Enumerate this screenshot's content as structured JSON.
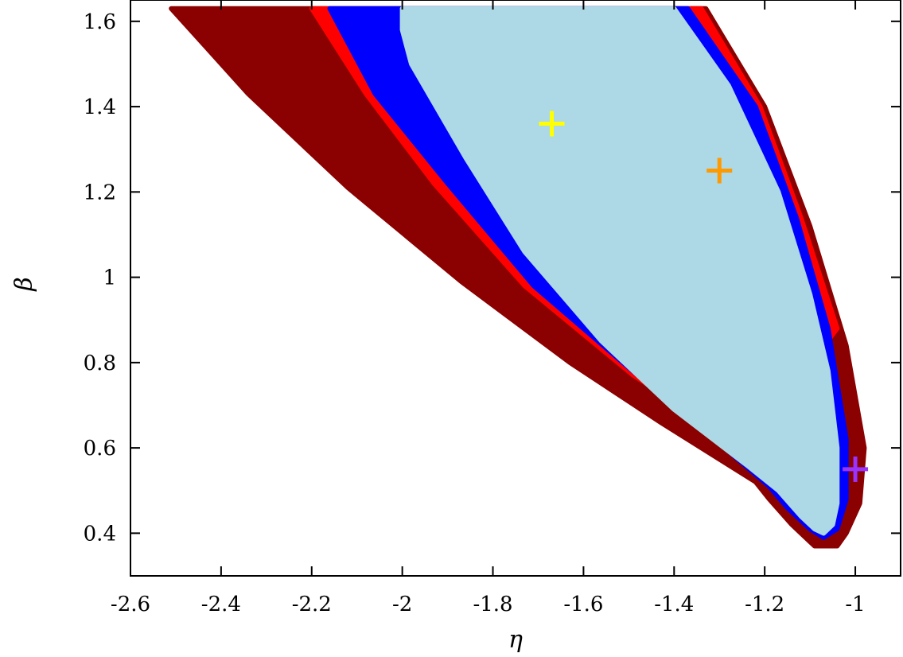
{
  "chart_data": {
    "type": "area",
    "title": "",
    "xlabel": "η",
    "ylabel": "β",
    "xlim": [
      -2.6,
      -0.9
    ],
    "ylim": [
      0.3,
      1.65
    ],
    "xticks": [
      -2.6,
      -2.4,
      -2.2,
      -2.0,
      -1.8,
      -1.6,
      -1.4,
      -1.2,
      -1.0
    ],
    "xtick_labels": [
      "-2.6",
      "-2.4",
      "-2.2",
      "-2",
      "-1.8",
      "-1.6",
      "-1.4",
      "-1.2",
      "-1"
    ],
    "yticks": [
      0.4,
      0.6,
      0.8,
      1.0,
      1.2,
      1.4,
      1.6
    ],
    "ytick_labels": [
      "0.4",
      "0.6",
      "0.8",
      "1",
      "1.2",
      "1.4",
      "1.6"
    ],
    "grid": false,
    "legend": "none",
    "regions": [
      {
        "color": "#8b0000",
        "points": [
          [
            -2.51,
            1.63
          ],
          [
            -1.33,
            1.63
          ],
          [
            -1.2,
            1.4
          ],
          [
            -1.1,
            1.12
          ],
          [
            -1.02,
            0.84
          ],
          [
            -0.98,
            0.6
          ],
          [
            -0.99,
            0.47
          ],
          [
            -1.02,
            0.4
          ],
          [
            -1.04,
            0.37
          ],
          [
            -1.09,
            0.37
          ],
          [
            -1.14,
            0.42
          ],
          [
            -1.19,
            0.48
          ],
          [
            -1.22,
            0.52
          ],
          [
            -1.43,
            0.66
          ],
          [
            -1.63,
            0.8
          ],
          [
            -1.87,
            0.99
          ],
          [
            -2.12,
            1.21
          ],
          [
            -2.34,
            1.43
          ]
        ]
      },
      {
        "color": "#ff0000",
        "points": [
          [
            -2.2,
            1.63
          ],
          [
            -1.34,
            1.63
          ],
          [
            -1.21,
            1.4
          ],
          [
            -1.12,
            1.14
          ],
          [
            -1.04,
            0.88
          ],
          [
            -1.24,
            0.6
          ],
          [
            -1.49,
            0.77
          ],
          [
            -1.73,
            0.98
          ],
          [
            -1.93,
            1.22
          ],
          [
            -2.08,
            1.43
          ]
        ]
      },
      {
        "color": "#0000ff",
        "points": [
          [
            -2.16,
            1.63
          ],
          [
            -1.37,
            1.63
          ],
          [
            -1.22,
            1.4
          ],
          [
            -1.13,
            1.14
          ],
          [
            -1.06,
            0.88
          ],
          [
            -1.02,
            0.62
          ],
          [
            -1.02,
            0.48
          ],
          [
            -1.04,
            0.41
          ],
          [
            -1.07,
            0.39
          ],
          [
            -1.1,
            0.41
          ],
          [
            -1.15,
            0.46
          ],
          [
            -1.19,
            0.51
          ],
          [
            -1.31,
            0.62
          ],
          [
            -1.48,
            0.77
          ],
          [
            -1.71,
            0.98
          ],
          [
            -1.9,
            1.22
          ],
          [
            -2.06,
            1.43
          ]
        ]
      },
      {
        "color": "#add8e6",
        "points": [
          [
            -2.0,
            1.63
          ],
          [
            -1.4,
            1.63
          ],
          [
            -1.28,
            1.45
          ],
          [
            -1.17,
            1.2
          ],
          [
            -1.1,
            0.96
          ],
          [
            -1.06,
            0.78
          ],
          [
            -1.04,
            0.6
          ],
          [
            -1.04,
            0.47
          ],
          [
            -1.05,
            0.42
          ],
          [
            -1.07,
            0.4
          ],
          [
            -1.09,
            0.41
          ],
          [
            -1.12,
            0.44
          ],
          [
            -1.17,
            0.5
          ],
          [
            -1.24,
            0.56
          ],
          [
            -1.4,
            0.69
          ],
          [
            -1.56,
            0.85
          ],
          [
            -1.73,
            1.06
          ],
          [
            -1.86,
            1.28
          ],
          [
            -1.98,
            1.5
          ],
          [
            -2.0,
            1.58
          ]
        ]
      }
    ],
    "markers": [
      {
        "x": -1.67,
        "y": 1.36,
        "color": "#ffff00",
        "symbol": "+"
      },
      {
        "x": -1.3,
        "y": 1.25,
        "color": "#ff9900",
        "symbol": "+"
      },
      {
        "x": -1.0,
        "y": 0.55,
        "color": "#9933ff",
        "symbol": "+"
      }
    ]
  }
}
